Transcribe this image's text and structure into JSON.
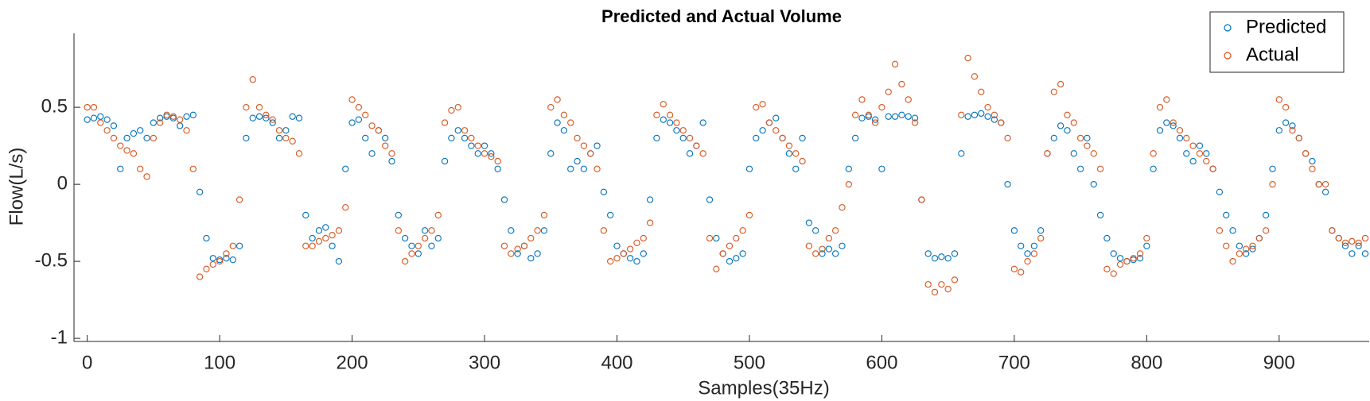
{
  "chart_data": {
    "type": "scatter",
    "title": "Predicted and Actual Volume",
    "xlabel": "Samples(35Hz)",
    "ylabel": "Flow(L/s)",
    "x": [
      0,
      5,
      10,
      15,
      20,
      25,
      30,
      35,
      40,
      45,
      50,
      55,
      60,
      65,
      70,
      75,
      80,
      85,
      90,
      95,
      100,
      105,
      110,
      115,
      120,
      125,
      130,
      135,
      140,
      145,
      150,
      155,
      160,
      165,
      170,
      175,
      180,
      185,
      190,
      195,
      200,
      205,
      210,
      215,
      220,
      225,
      230,
      235,
      240,
      245,
      250,
      255,
      260,
      265,
      270,
      275,
      280,
      285,
      290,
      295,
      300,
      305,
      310,
      315,
      320,
      325,
      330,
      335,
      340,
      345,
      350,
      355,
      360,
      365,
      370,
      375,
      380,
      385,
      390,
      395,
      400,
      405,
      410,
      415,
      420,
      425,
      430,
      435,
      440,
      445,
      450,
      455,
      460,
      465,
      470,
      475,
      480,
      485,
      490,
      495,
      500,
      505,
      510,
      515,
      520,
      525,
      530,
      535,
      540,
      545,
      550,
      555,
      560,
      565,
      570,
      575,
      580,
      585,
      590,
      595,
      600,
      605,
      610,
      615,
      620,
      625,
      630,
      635,
      640,
      645,
      650,
      655,
      660,
      665,
      670,
      675,
      680,
      685,
      690,
      695,
      700,
      705,
      710,
      715,
      720,
      725,
      730,
      735,
      740,
      745,
      750,
      755,
      760,
      765,
      770,
      775,
      780,
      785,
      790,
      795,
      800,
      805,
      810,
      815,
      820,
      825,
      830,
      835,
      840,
      845,
      850,
      855,
      860,
      865,
      870,
      875,
      880,
      885,
      890,
      895,
      900,
      905,
      910,
      915,
      920,
      925,
      930,
      935,
      940,
      945,
      950,
      955,
      960,
      965
    ],
    "series": [
      {
        "name": "Predicted",
        "color": "#0072BD",
        "values": [
          0.42,
          0.43,
          0.44,
          0.42,
          0.38,
          0.1,
          0.3,
          0.33,
          0.35,
          0.3,
          0.4,
          0.43,
          0.44,
          0.43,
          0.38,
          0.44,
          0.45,
          -0.05,
          -0.35,
          -0.48,
          -0.49,
          -0.48,
          -0.49,
          -0.4,
          0.3,
          0.43,
          0.44,
          0.43,
          0.4,
          0.3,
          0.35,
          0.44,
          0.43,
          -0.2,
          -0.35,
          -0.3,
          -0.28,
          -0.4,
          -0.5,
          0.1,
          0.4,
          0.42,
          0.3,
          0.2,
          0.35,
          0.3,
          0.15,
          -0.2,
          -0.35,
          -0.4,
          -0.45,
          -0.3,
          -0.4,
          -0.35,
          0.15,
          0.3,
          0.35,
          0.3,
          0.25,
          0.2,
          0.25,
          0.2,
          0.1,
          -0.1,
          -0.3,
          -0.45,
          -0.4,
          -0.48,
          -0.45,
          -0.3,
          0.2,
          0.4,
          0.35,
          0.1,
          0.15,
          0.1,
          0.2,
          0.25,
          -0.05,
          -0.2,
          -0.4,
          -0.45,
          -0.48,
          -0.5,
          -0.45,
          -0.1,
          0.3,
          0.42,
          0.4,
          0.35,
          0.3,
          0.2,
          0.25,
          0.4,
          -0.1,
          -0.35,
          -0.45,
          -0.5,
          -0.48,
          -0.45,
          0.1,
          0.3,
          0.35,
          0.4,
          0.43,
          0.3,
          0.2,
          0.1,
          0.3,
          -0.25,
          -0.3,
          -0.45,
          -0.42,
          -0.45,
          -0.4,
          0.1,
          0.3,
          0.43,
          0.44,
          0.42,
          0.1,
          0.44,
          0.44,
          0.45,
          0.44,
          0.43,
          -0.1,
          -0.45,
          -0.48,
          -0.47,
          -0.48,
          -0.45,
          0.2,
          0.44,
          0.45,
          0.46,
          0.44,
          0.42,
          0.4,
          0.0,
          -0.3,
          -0.4,
          -0.45,
          -0.4,
          -0.3,
          0.2,
          0.3,
          0.38,
          0.35,
          0.2,
          0.1,
          0.3,
          0.0,
          -0.2,
          -0.35,
          -0.45,
          -0.48,
          -0.5,
          -0.49,
          -0.48,
          -0.4,
          0.1,
          0.35,
          0.4,
          0.38,
          0.3,
          0.2,
          0.15,
          0.25,
          0.2,
          0.1,
          -0.05,
          -0.2,
          -0.3,
          -0.4,
          -0.45,
          -0.42,
          -0.35,
          -0.2,
          0.1,
          0.35,
          0.4,
          0.38,
          0.3,
          0.2,
          0.15,
          0.0,
          -0.05,
          -0.3,
          -0.35,
          -0.4,
          -0.45,
          -0.4,
          -0.45
        ]
      },
      {
        "name": "Actual",
        "color": "#D95319",
        "values": [
          0.5,
          0.5,
          0.4,
          0.35,
          0.3,
          0.25,
          0.22,
          0.2,
          0.1,
          0.05,
          0.3,
          0.4,
          0.45,
          0.44,
          0.42,
          0.35,
          0.1,
          -0.6,
          -0.55,
          -0.52,
          -0.5,
          -0.45,
          -0.4,
          -0.1,
          0.5,
          0.68,
          0.5,
          0.45,
          0.42,
          0.35,
          0.3,
          0.28,
          0.2,
          -0.4,
          -0.4,
          -0.37,
          -0.35,
          -0.33,
          -0.3,
          -0.15,
          0.55,
          0.5,
          0.45,
          0.38,
          0.35,
          0.25,
          0.2,
          -0.3,
          -0.5,
          -0.45,
          -0.4,
          -0.35,
          -0.3,
          -0.2,
          0.4,
          0.48,
          0.5,
          0.35,
          0.3,
          0.25,
          0.2,
          0.18,
          0.15,
          -0.4,
          -0.45,
          -0.42,
          -0.4,
          -0.35,
          -0.3,
          -0.2,
          0.5,
          0.55,
          0.45,
          0.4,
          0.3,
          0.25,
          0.2,
          0.1,
          -0.3,
          -0.5,
          -0.48,
          -0.45,
          -0.42,
          -0.38,
          -0.35,
          -0.25,
          0.45,
          0.52,
          0.45,
          0.4,
          0.35,
          0.3,
          0.25,
          0.2,
          -0.35,
          -0.55,
          -0.45,
          -0.4,
          -0.35,
          -0.3,
          -0.2,
          0.5,
          0.52,
          0.4,
          0.35,
          0.3,
          0.25,
          0.2,
          0.15,
          -0.4,
          -0.45,
          -0.42,
          -0.35,
          -0.3,
          -0.15,
          0.0,
          0.45,
          0.55,
          0.45,
          0.4,
          0.5,
          0.6,
          0.78,
          0.65,
          0.55,
          0.4,
          -0.1,
          -0.65,
          -0.7,
          -0.65,
          -0.68,
          -0.62,
          0.45,
          0.82,
          0.7,
          0.6,
          0.5,
          0.45,
          0.4,
          0.3,
          -0.55,
          -0.57,
          -0.5,
          -0.45,
          -0.35,
          0.2,
          0.6,
          0.65,
          0.45,
          0.4,
          0.3,
          0.25,
          0.2,
          0.1,
          -0.55,
          -0.58,
          -0.52,
          -0.5,
          -0.48,
          -0.45,
          -0.35,
          0.2,
          0.5,
          0.55,
          0.4,
          0.35,
          0.3,
          0.25,
          0.2,
          0.15,
          0.1,
          -0.3,
          -0.4,
          -0.5,
          -0.45,
          -0.42,
          -0.4,
          -0.35,
          -0.3,
          0.0,
          0.55,
          0.5,
          0.35,
          0.3,
          0.2,
          0.1,
          0.0,
          0.0,
          -0.3,
          -0.35,
          -0.38,
          -0.37,
          -0.38,
          -0.35
        ]
      }
    ],
    "xlim": [
      -10,
      968
    ],
    "ylim": [
      -1.02,
      0.98
    ],
    "xticks": [
      0,
      100,
      200,
      300,
      400,
      500,
      600,
      700,
      800,
      900
    ],
    "yticks": [
      -1,
      -0.5,
      0,
      0.5
    ],
    "legend": "top-right"
  }
}
